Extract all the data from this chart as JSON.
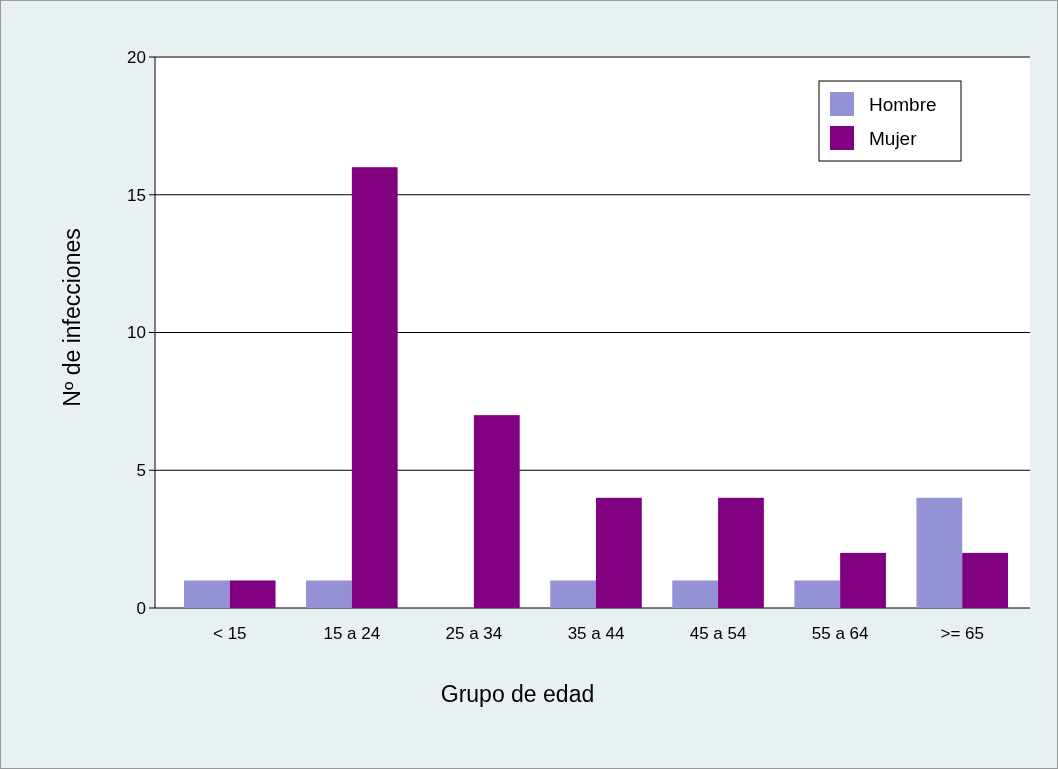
{
  "chart_data": {
    "type": "bar",
    "xlabel": "Grupo de edad",
    "ylabel": "Nº de infecciones",
    "categories": [
      "< 15",
      "15 a 24",
      "25 a 34",
      "35 a 44",
      "45 a 54",
      "55 a 64",
      ">= 65"
    ],
    "series": [
      {
        "name": "Hombre",
        "color": "#9591d5",
        "values": [
          1,
          1,
          0,
          1,
          1,
          1,
          4
        ]
      },
      {
        "name": "Mujer",
        "color": "#800080",
        "values": [
          1,
          16,
          7,
          4,
          4,
          2,
          2
        ]
      }
    ],
    "ylim": [
      0,
      20
    ],
    "yticks": [
      0,
      5,
      10,
      15,
      20
    ],
    "grid": "y",
    "legend": "top right"
  }
}
